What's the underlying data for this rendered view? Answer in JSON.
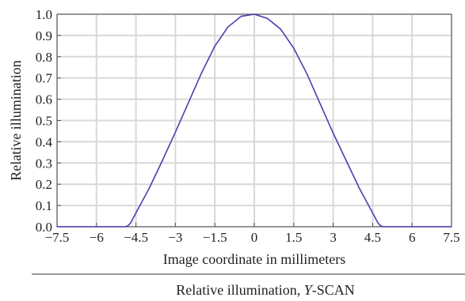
{
  "chart_data": {
    "type": "line",
    "xlabel": "Image coordinate in millimeters",
    "ylabel": "Relative illumination",
    "caption_prefix": "Relative illumination, ",
    "caption_italic": "Y",
    "caption_suffix": "-SCAN",
    "xlim": [
      -7.5,
      7.5
    ],
    "ylim": [
      0,
      1.0
    ],
    "x_ticks": [
      -7.5,
      -6,
      -4.5,
      -3,
      -1.5,
      0,
      1.5,
      3,
      4.5,
      6,
      7.5
    ],
    "x_tick_labels": [
      "−7.5",
      "−6",
      "−4.5",
      "−3",
      "−1.5",
      "0",
      "1.5",
      "3",
      "4.5",
      "6",
      "7.5"
    ],
    "y_ticks": [
      0,
      0.1,
      0.2,
      0.3,
      0.4,
      0.5,
      0.6,
      0.7,
      0.8,
      0.9,
      1.0
    ],
    "y_tick_labels": [
      "0.0",
      "0.1",
      "0.2",
      "0.3",
      "0.4",
      "0.5",
      "0.6",
      "0.7",
      "0.8",
      "0.9",
      "1.0"
    ],
    "grid": true,
    "line_color": "#4a3fb0",
    "grid_color": "#d8d8d8",
    "series": [
      {
        "x": [
          -7.5,
          -5.0,
          -4.9,
          -4.8,
          -4.7,
          -4.5,
          -4.0,
          -3.5,
          -3.0,
          -2.5,
          -2.0,
          -1.5,
          -1.0,
          -0.5,
          0.0,
          0.5,
          1.0,
          1.5,
          2.0,
          2.5,
          3.0,
          3.5,
          4.0,
          4.5,
          4.7,
          4.8,
          4.9,
          5.0,
          7.5
        ],
        "y": [
          0.0,
          0.0,
          0.0,
          0.005,
          0.018,
          0.065,
          0.18,
          0.31,
          0.445,
          0.585,
          0.725,
          0.85,
          0.94,
          0.99,
          1.0,
          0.98,
          0.93,
          0.84,
          0.72,
          0.58,
          0.44,
          0.31,
          0.18,
          0.065,
          0.018,
          0.005,
          0.0,
          0.0,
          0.0
        ]
      }
    ]
  }
}
